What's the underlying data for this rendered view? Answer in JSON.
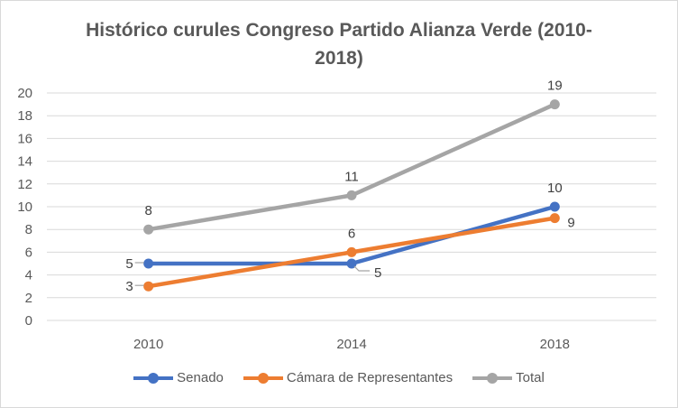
{
  "chart_data": {
    "type": "line",
    "title": "Histórico curules Congreso Partido Alianza Verde (2010-2018)",
    "title_lines": [
      "Histórico curules Congreso Partido Alianza Verde (2010-",
      "2018)"
    ],
    "categories": [
      "2010",
      "2014",
      "2018"
    ],
    "ylim": [
      0,
      20
    ],
    "yticks": [
      "0",
      "2",
      "4",
      "6",
      "8",
      "10",
      "12",
      "14",
      "16",
      "18",
      "20"
    ],
    "grid": true,
    "legend": "bottom",
    "xlabel": "",
    "ylabel": "",
    "series": [
      {
        "name": "Senado",
        "color": "#4472c4",
        "values": [
          5,
          5,
          10
        ],
        "label_pos": [
          "left",
          "below-right",
          "above"
        ]
      },
      {
        "name": "Cámara de Representantes",
        "color": "#ed7d31",
        "values": [
          3,
          6,
          9
        ],
        "label_pos": [
          "left",
          "above",
          "right"
        ]
      },
      {
        "name": "Total",
        "color": "#a5a5a5",
        "values": [
          8,
          11,
          19
        ],
        "label_pos": [
          "above",
          "above",
          "above"
        ]
      }
    ]
  }
}
